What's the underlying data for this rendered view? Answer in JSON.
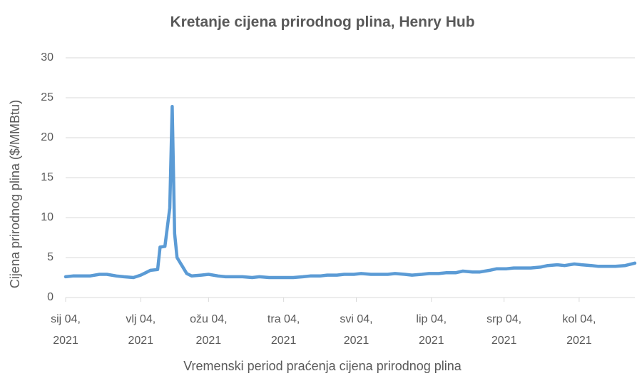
{
  "chart_data": {
    "type": "line",
    "title": "Kretanje cijena prirodnog plina, Henry Hub",
    "x_label": "Vremenski period praćenja cijena prirodnog plina",
    "y_label": "Cijena prirodnog plina ($/MMBtu)",
    "x": [
      "2021-01-04",
      "2021-01-07",
      "2021-01-11",
      "2021-01-14",
      "2021-01-18",
      "2021-01-21",
      "2021-01-25",
      "2021-01-28",
      "2021-02-01",
      "2021-02-04",
      "2021-02-06",
      "2021-02-08",
      "2021-02-11",
      "2021-02-12",
      "2021-02-14",
      "2021-02-16",
      "2021-02-17",
      "2021-02-18",
      "2021-02-19",
      "2021-02-21",
      "2021-02-23",
      "2021-02-25",
      "2021-03-01",
      "2021-03-04",
      "2021-03-08",
      "2021-03-11",
      "2021-03-15",
      "2021-03-18",
      "2021-03-22",
      "2021-03-25",
      "2021-03-29",
      "2021-04-01",
      "2021-04-05",
      "2021-04-08",
      "2021-04-12",
      "2021-04-15",
      "2021-04-19",
      "2021-04-22",
      "2021-04-26",
      "2021-04-29",
      "2021-05-03",
      "2021-05-06",
      "2021-05-10",
      "2021-05-13",
      "2021-05-17",
      "2021-05-20",
      "2021-05-24",
      "2021-05-27",
      "2021-05-31",
      "2021-06-03",
      "2021-06-07",
      "2021-06-10",
      "2021-06-14",
      "2021-06-17",
      "2021-06-21",
      "2021-06-24",
      "2021-06-28",
      "2021-07-01",
      "2021-07-05",
      "2021-07-08",
      "2021-07-12",
      "2021-07-15",
      "2021-07-19",
      "2021-07-22",
      "2021-07-26",
      "2021-07-29",
      "2021-08-02",
      "2021-08-05",
      "2021-08-09",
      "2021-08-12",
      "2021-08-16",
      "2021-08-19",
      "2021-08-23",
      "2021-08-27"
    ],
    "series": [
      {
        "name": "Henry Hub",
        "color": "#5b9bd5",
        "values": [
          2.6,
          2.7,
          2.7,
          2.7,
          2.9,
          2.9,
          2.7,
          2.6,
          2.5,
          2.8,
          3.1,
          3.4,
          3.5,
          6.3,
          6.4,
          11.2,
          23.9,
          8.0,
          5.0,
          4.0,
          3.0,
          2.7,
          2.8,
          2.9,
          2.7,
          2.6,
          2.6,
          2.6,
          2.5,
          2.6,
          2.5,
          2.5,
          2.5,
          2.5,
          2.6,
          2.7,
          2.7,
          2.8,
          2.8,
          2.9,
          2.9,
          3.0,
          2.9,
          2.9,
          2.9,
          3.0,
          2.9,
          2.8,
          2.9,
          3.0,
          3.0,
          3.1,
          3.1,
          3.3,
          3.2,
          3.2,
          3.4,
          3.6,
          3.6,
          3.7,
          3.7,
          3.7,
          3.8,
          4.0,
          4.1,
          4.0,
          4.2,
          4.1,
          4.0,
          3.9,
          3.9,
          3.9,
          4.0,
          4.3
        ]
      }
    ],
    "xlim": [
      "2021-01-04",
      "2021-08-27"
    ],
    "xticks": [
      {
        "value": "2021-01-04",
        "label": "sij 04, 2021"
      },
      {
        "value": "2021-02-04",
        "label": "vlj 04, 2021"
      },
      {
        "value": "2021-03-04",
        "label": "ožu 04, 2021"
      },
      {
        "value": "2021-04-04",
        "label": "tra 04, 2021"
      },
      {
        "value": "2021-05-04",
        "label": "svi 04, 2021"
      },
      {
        "value": "2021-06-04",
        "label": "lip 04, 2021"
      },
      {
        "value": "2021-07-04",
        "label": "srp 04, 2021"
      },
      {
        "value": "2021-08-04",
        "label": "kol 04, 2021"
      }
    ],
    "ylim": [
      0,
      30
    ],
    "yticks": [
      0,
      5,
      10,
      15,
      20,
      25,
      30
    ],
    "grid": true
  }
}
